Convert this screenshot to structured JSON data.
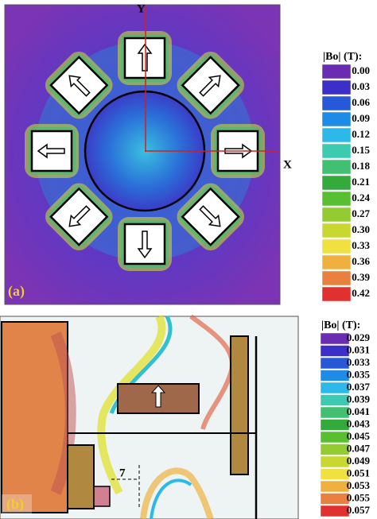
{
  "panel_a": {
    "label": "(a)",
    "x_axis": "X",
    "y_axis": "Y",
    "legend": {
      "title": "|Bo| (T):",
      "entries": [
        {
          "label": "0.00",
          "color": "#6a2cb0"
        },
        {
          "label": "0.03",
          "color": "#3c2fc8"
        },
        {
          "label": "0.06",
          "color": "#2658d8"
        },
        {
          "label": "0.09",
          "color": "#1e8ce6"
        },
        {
          "label": "0.12",
          "color": "#2cb8e8"
        },
        {
          "label": "0.15",
          "color": "#3ccab0"
        },
        {
          "label": "0.18",
          "color": "#40c070"
        },
        {
          "label": "0.21",
          "color": "#34aa3c"
        },
        {
          "label": "0.24",
          "color": "#58c030"
        },
        {
          "label": "0.27",
          "color": "#92cc30"
        },
        {
          "label": "0.30",
          "color": "#c8d830"
        },
        {
          "label": "0.33",
          "color": "#f0e040"
        },
        {
          "label": "0.36",
          "color": "#f0b040"
        },
        {
          "label": "0.39",
          "color": "#e88040"
        },
        {
          "label": "0.42",
          "color": "#e03030"
        }
      ]
    }
  },
  "panel_b": {
    "label": "(b)",
    "annotation": "7",
    "legend": {
      "title": "|Bo| (T):",
      "entries": [
        {
          "label": "0.029",
          "color": "#6a2cb0"
        },
        {
          "label": "0.031",
          "color": "#3c2fc8"
        },
        {
          "label": "0.033",
          "color": "#2658d8"
        },
        {
          "label": "0.035",
          "color": "#1e8ce6"
        },
        {
          "label": "0.037",
          "color": "#2cb8e8"
        },
        {
          "label": "0.039",
          "color": "#3ccab0"
        },
        {
          "label": "0.041",
          "color": "#40c070"
        },
        {
          "label": "0.043",
          "color": "#34aa3c"
        },
        {
          "label": "0.045",
          "color": "#58c030"
        },
        {
          "label": "0.047",
          "color": "#92cc30"
        },
        {
          "label": "0.049",
          "color": "#c8d830"
        },
        {
          "label": "0.051",
          "color": "#f0e040"
        },
        {
          "label": "0.053",
          "color": "#f0b040"
        },
        {
          "label": "0.055",
          "color": "#e88040"
        },
        {
          "label": "0.057",
          "color": "#e03030"
        }
      ]
    }
  }
}
